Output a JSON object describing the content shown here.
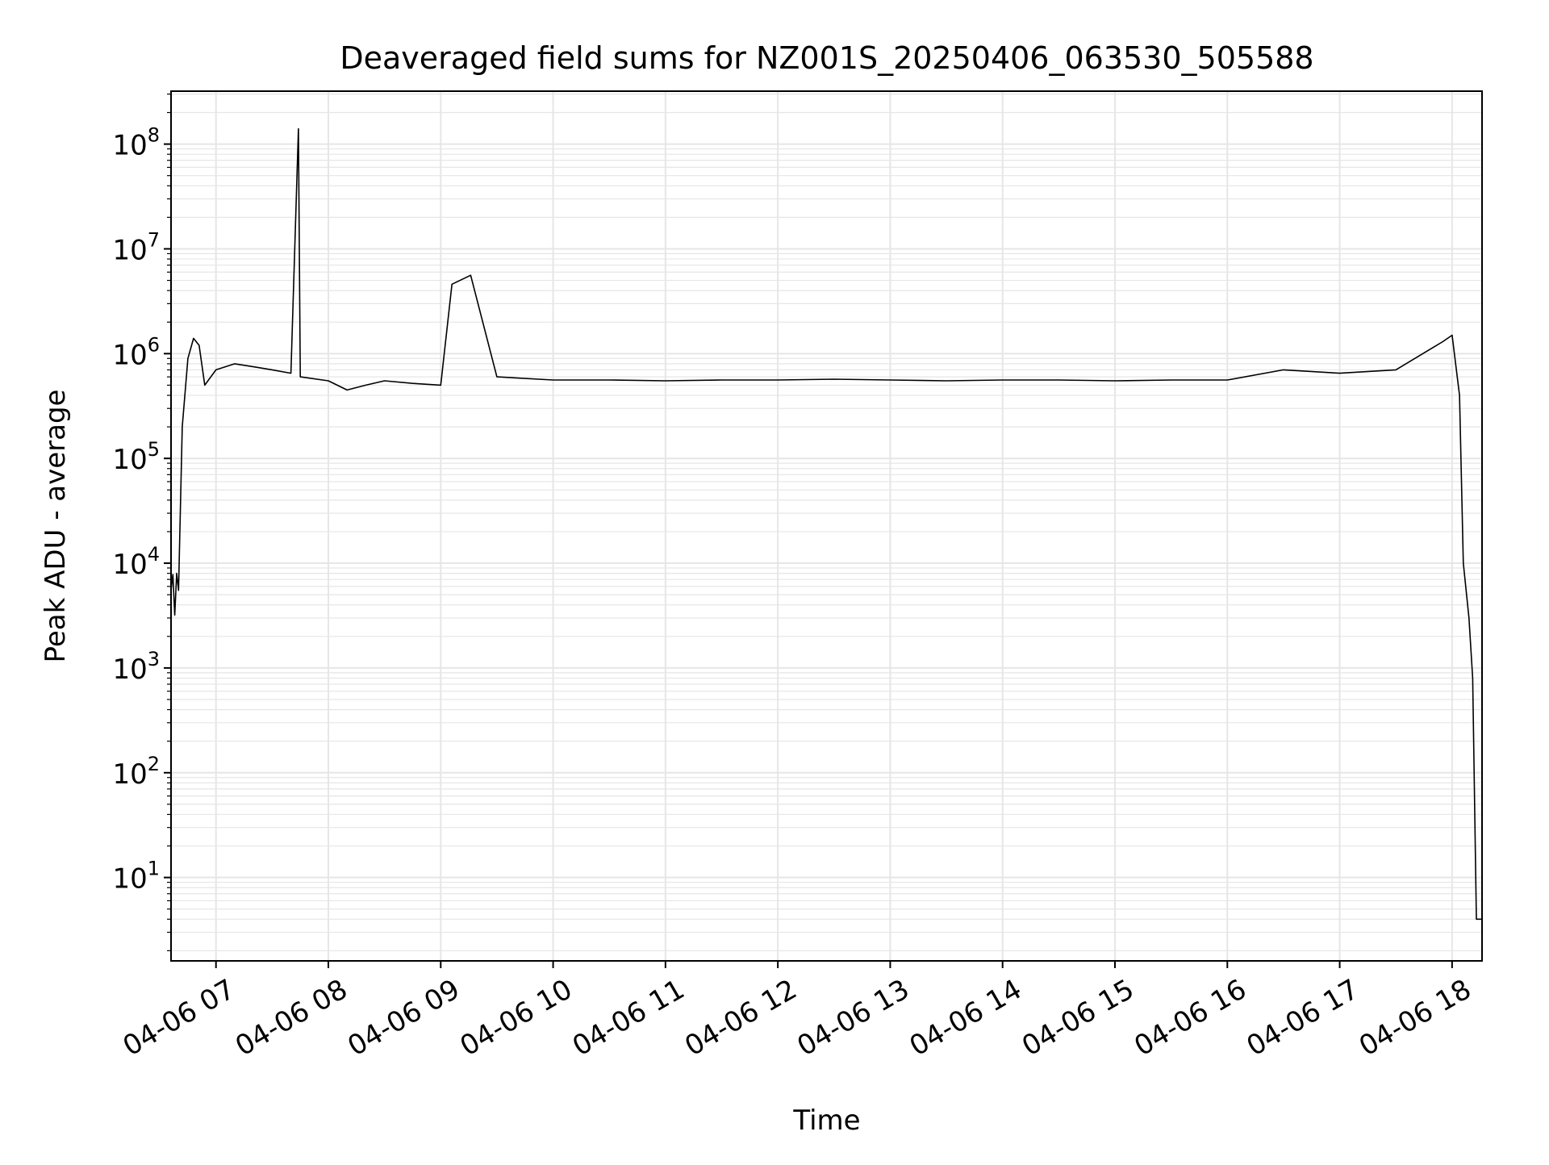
{
  "chart_data": {
    "type": "line",
    "title": "Deaveraged field sums for NZ001S_20250406_063530_505588",
    "xlabel": "Time",
    "ylabel": "Peak ADU - average",
    "x_ticks": [
      "04-06 07",
      "04-06 08",
      "04-06 09",
      "04-06 10",
      "04-06 11",
      "04-06 12",
      "04-06 13",
      "04-06 14",
      "04-06 15",
      "04-06 16",
      "04-06 17",
      "04-06 18"
    ],
    "y_ticks": [
      {
        "base": "10",
        "exp": "1",
        "value": 10
      },
      {
        "base": "10",
        "exp": "2",
        "value": 100
      },
      {
        "base": "10",
        "exp": "3",
        "value": 1000
      },
      {
        "base": "10",
        "exp": "4",
        "value": 10000
      },
      {
        "base": "10",
        "exp": "5",
        "value": 100000
      },
      {
        "base": "10",
        "exp": "6",
        "value": 1000000
      },
      {
        "base": "10",
        "exp": "7",
        "value": 10000000
      },
      {
        "base": "10",
        "exp": "8",
        "value": 100000000
      }
    ],
    "xlim": [
      "2025-04-06 06:36",
      "2025-04-06 18:16"
    ],
    "ylim": [
      1.6,
      320000000
    ],
    "y_scale": "log",
    "grid": true,
    "line_color": "#000000",
    "grid_color": "#e6e6e6",
    "series": [
      {
        "values": [
          [
            "2025-04-06 06:36",
            5500
          ],
          [
            "2025-04-06 06:37",
            7800
          ],
          [
            "2025-04-06 06:38",
            3200
          ],
          [
            "2025-04-06 06:39",
            8000
          ],
          [
            "2025-04-06 06:40",
            5500
          ],
          [
            "2025-04-06 06:42",
            200000
          ],
          [
            "2025-04-06 06:45",
            900000
          ],
          [
            "2025-04-06 06:48",
            1400000
          ],
          [
            "2025-04-06 06:51",
            1200000
          ],
          [
            "2025-04-06 06:54",
            500000
          ],
          [
            "2025-04-06 07:00",
            700000
          ],
          [
            "2025-04-06 07:10",
            800000
          ],
          [
            "2025-04-06 07:20",
            750000
          ],
          [
            "2025-04-06 07:30",
            700000
          ],
          [
            "2025-04-06 07:40",
            650000
          ],
          [
            "2025-04-06 07:44",
            140000000
          ],
          [
            "2025-04-06 07:45",
            600000
          ],
          [
            "2025-04-06 08:00",
            550000
          ],
          [
            "2025-04-06 08:10",
            450000
          ],
          [
            "2025-04-06 08:20",
            500000
          ],
          [
            "2025-04-06 08:30",
            550000
          ],
          [
            "2025-04-06 08:45",
            520000
          ],
          [
            "2025-04-06 09:00",
            500000
          ],
          [
            "2025-04-06 09:06",
            4600000
          ],
          [
            "2025-04-06 09:16",
            5600000
          ],
          [
            "2025-04-06 09:30",
            600000
          ],
          [
            "2025-04-06 10:00",
            560000
          ],
          [
            "2025-04-06 10:30",
            560000
          ],
          [
            "2025-04-06 11:00",
            550000
          ],
          [
            "2025-04-06 11:30",
            560000
          ],
          [
            "2025-04-06 12:00",
            560000
          ],
          [
            "2025-04-06 12:30",
            570000
          ],
          [
            "2025-04-06 13:00",
            560000
          ],
          [
            "2025-04-06 13:30",
            550000
          ],
          [
            "2025-04-06 14:00",
            560000
          ],
          [
            "2025-04-06 14:30",
            560000
          ],
          [
            "2025-04-06 15:00",
            550000
          ],
          [
            "2025-04-06 15:30",
            560000
          ],
          [
            "2025-04-06 16:00",
            560000
          ],
          [
            "2025-04-06 16:30",
            700000
          ],
          [
            "2025-04-06 17:00",
            650000
          ],
          [
            "2025-04-06 17:30",
            700000
          ],
          [
            "2025-04-06 17:55",
            1300000
          ],
          [
            "2025-04-06 18:00",
            1500000
          ],
          [
            "2025-04-06 18:04",
            400000
          ],
          [
            "2025-04-06 18:06",
            10000
          ],
          [
            "2025-04-06 18:09",
            3000
          ],
          [
            "2025-04-06 18:11",
            800
          ],
          [
            "2025-04-06 18:13",
            4
          ],
          [
            "2025-04-06 18:16",
            4
          ]
        ]
      }
    ]
  }
}
